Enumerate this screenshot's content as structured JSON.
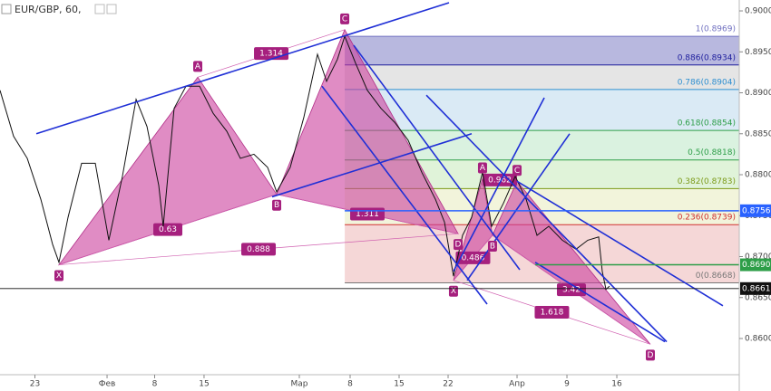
{
  "chart_data": {
    "type": "line",
    "title": "EUR/GBP, 60,",
    "xlim": [
      -3.5,
      70.59
    ],
    "ylim": [
      0.85359,
      0.90133
    ],
    "xticks": [
      {
        "value": 0,
        "label": "23"
      },
      {
        "value": 7.23,
        "label": "Фев"
      },
      {
        "value": 12,
        "label": "8"
      },
      {
        "value": 16.95,
        "label": "15"
      },
      {
        "value": 26.5,
        "label": "Мар"
      },
      {
        "value": 31.59,
        "label": "8"
      },
      {
        "value": 36.5,
        "label": "15"
      },
      {
        "value": 41.41,
        "label": "22"
      },
      {
        "value": 48.32,
        "label": "Апр"
      },
      {
        "value": 53.32,
        "label": "9"
      },
      {
        "value": 58.32,
        "label": "16"
      }
    ],
    "yticks": [
      {
        "value": 0.86,
        "label": "0.8600"
      },
      {
        "value": 0.865,
        "label": "0.8650"
      },
      {
        "value": 0.87,
        "label": "0.8700"
      },
      {
        "value": 0.875,
        "label": "0.8750"
      },
      {
        "value": 0.88,
        "label": "0.8800"
      },
      {
        "value": 0.885,
        "label": "0.8850"
      },
      {
        "value": 0.89,
        "label": "0.8900"
      },
      {
        "value": 0.895,
        "label": "0.8950"
      },
      {
        "value": 0.9,
        "label": "0.9000"
      }
    ],
    "series": [
      {
        "name": "EUR/GBP",
        "color": "#111111",
        "x": [
          -3.5,
          -2.14,
          -0.77,
          0.59,
          1.77,
          2.41,
          3.32,
          4.68,
          6.05,
          7.41,
          8.77,
          10.14,
          11.23,
          12.41,
          12.86,
          13.95,
          15.14,
          16.5,
          17.86,
          19.23,
          20.59,
          21.95,
          23.32,
          24.23,
          25.59,
          26.95,
          28.32,
          29.23,
          30.32,
          31.05,
          32.14,
          33.32,
          34.68,
          36.05,
          37.41,
          38.77,
          40.14,
          41.05,
          41.95,
          42.86,
          43.77,
          44.86,
          45.77,
          46.95,
          48.14,
          49.23,
          50.32,
          51.5,
          52.86,
          54.23,
          55.41,
          56.5,
          56.86,
          57.23,
          57.59
        ],
        "values": [
          0.8903,
          0.8847,
          0.882,
          0.877,
          0.8715,
          0.8693,
          0.8748,
          0.8814,
          0.8814,
          0.872,
          0.8798,
          0.8892,
          0.8859,
          0.8787,
          0.8737,
          0.8881,
          0.8908,
          0.8908,
          0.8875,
          0.8853,
          0.882,
          0.8825,
          0.8809,
          0.8779,
          0.8809,
          0.887,
          0.8947,
          0.8914,
          0.8941,
          0.8969,
          0.8936,
          0.8903,
          0.8881,
          0.8864,
          0.8842,
          0.8803,
          0.877,
          0.8742,
          0.8676,
          0.8726,
          0.8748,
          0.8803,
          0.8737,
          0.8765,
          0.8798,
          0.877,
          0.8726,
          0.8737,
          0.872,
          0.8709,
          0.872,
          0.8724,
          0.8682,
          0.866,
          0.8664
        ]
      }
    ],
    "fib": {
      "x_start": 31.05,
      "levels": [
        {
          "label": "0(0.8668)",
          "value": 0.8668,
          "color": "#777777"
        },
        {
          "label": "0.236(0.8739)",
          "value": 0.8739,
          "color": "#d03030",
          "fill": "#f2c9c9"
        },
        {
          "label": "0.382(0.8783)",
          "value": 0.8783,
          "color": "#7c9a18",
          "fill": "#eef0cf"
        },
        {
          "label": "0.5(0.8818)",
          "value": 0.8818,
          "color": "#2e9e48",
          "fill": "#d6efcc"
        },
        {
          "label": "0.618(0.8854)",
          "value": 0.8854,
          "color": "#2e9e48",
          "fill": "#cdeed6"
        },
        {
          "label": "0.786(0.8904)",
          "value": 0.8904,
          "color": "#2f8fd0",
          "fill": "#cde3f2"
        },
        {
          "label": "0.886(0.8934)",
          "value": 0.8934,
          "color": "#1c1c9c",
          "fill": "#dcdcdc"
        },
        {
          "label": "1(0.8969)",
          "value": 0.8969,
          "color": "#7070c0",
          "fill": "#a0a0d4"
        }
      ]
    },
    "patterns": [
      {
        "points": [
          {
            "label": "X",
            "x": 2.41,
            "price": 0.869
          },
          {
            "label": "A",
            "x": 16.32,
            "price": 0.8919
          },
          {
            "label": "B",
            "x": 24.23,
            "price": 0.8776
          },
          {
            "label": "C",
            "x": 31.05,
            "price": 0.8977
          },
          {
            "label": "D",
            "x": 42.41,
            "price": 0.8728
          }
        ],
        "ratios": {
          "XB": "0.63",
          "AC": "1.314",
          "BD": "1.311",
          "XD": "0.888"
        }
      },
      {
        "points": [
          {
            "label": "X",
            "x": 41.95,
            "price": 0.8671
          },
          {
            "label": "A",
            "x": 44.86,
            "price": 0.8795
          },
          {
            "label": "B",
            "x": 45.86,
            "price": 0.8726
          },
          {
            "label": "C",
            "x": 48.32,
            "price": 0.8792
          },
          {
            "label": "D",
            "x": 61.68,
            "price": 0.8593
          }
        ],
        "ratios": {
          "XB": "0.486",
          "AC": "0.962",
          "BD": "3.42",
          "XD": "1.618"
        }
      }
    ],
    "trend_lines": [
      {
        "x": [
          0.14,
          41.5
        ],
        "price": [
          0.885,
          0.901
        ]
      },
      {
        "x": [
          23.77,
          43.77
        ],
        "price": [
          0.8773,
          0.885
        ]
      },
      {
        "x": [
          28.77,
          45.32
        ],
        "price": [
          0.8908,
          0.8642
        ]
      },
      {
        "x": [
          31.95,
          48.59
        ],
        "price": [
          0.8958,
          0.8684
        ]
      },
      {
        "x": [
          39.23,
          63.32
        ],
        "price": [
          0.8897,
          0.8596
        ]
      },
      {
        "x": [
          48.32,
          68.95
        ],
        "price": [
          0.8792,
          0.864
        ]
      },
      {
        "x": [
          41.95,
          51.05
        ],
        "price": [
          0.8682,
          0.8894
        ]
      },
      {
        "x": [
          43.32,
          53.59
        ],
        "price": [
          0.8671,
          0.885
        ]
      },
      {
        "x": [
          50.14,
          63.14
        ],
        "price": [
          0.8693,
          0.8596
        ]
      }
    ],
    "price_lines": [
      {
        "value": 0.8756,
        "label": "0.8756",
        "color": "#2962ff",
        "from": 31.05
      },
      {
        "value": 0.869,
        "label": "0.8690",
        "color": "#2e9e48",
        "from": 50.14
      },
      {
        "value": 0.8661,
        "label": "0.8661",
        "color": "#111111",
        "from": -3.5
      }
    ]
  }
}
